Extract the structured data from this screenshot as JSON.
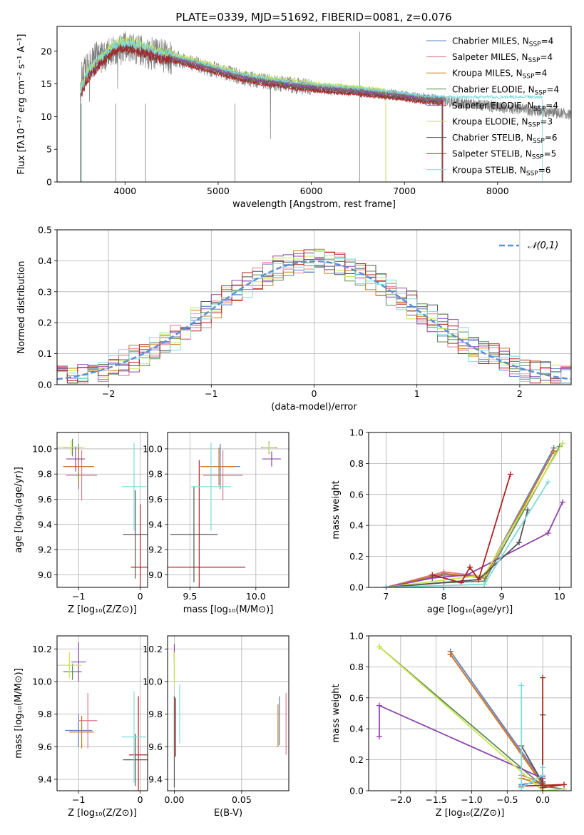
{
  "figure": {
    "title": "PLATE=0339, MJD=51692, FIBERID=0081, z=0.076"
  },
  "models": [
    {
      "name": "Chabrier MILES",
      "nssp": "4",
      "color": "#5b7fc4"
    },
    {
      "name": "Salpeter MILES",
      "nssp": "4",
      "color": "#e07a8c"
    },
    {
      "name": "Kroupa MILES",
      "nssp": "4",
      "color": "#c87a1e"
    },
    {
      "name": "Chabrier ELODIE",
      "nssp": "4",
      "color": "#5e8a57"
    },
    {
      "name": "Salpeter ELODIE",
      "nssp": "4",
      "color": "#8e44ad"
    },
    {
      "name": "Kroupa ELODIE",
      "nssp": "3",
      "color": "#c9e84a"
    },
    {
      "name": "Chabrier STELIB",
      "nssp": "6",
      "color": "#555555"
    },
    {
      "name": "Salpeter STELIB",
      "nssp": "5",
      "color": "#b22222"
    },
    {
      "name": "Kroupa STELIB",
      "nssp": "6",
      "color": "#7fdbdb"
    }
  ],
  "chart_data": [
    {
      "id": "spectrum",
      "type": "line",
      "xlabel": "wavelength [Angstrom, rest frame]",
      "ylabel": "Flux [fλ10⁻¹⁷ erg cm⁻² s⁻¹ A⁻¹]",
      "xlim": [
        3270,
        8790
      ],
      "ylim": [
        0,
        23.8
      ],
      "xticks": [
        4000,
        5000,
        6000,
        7000,
        8000
      ],
      "yticks": [
        0,
        5,
        10,
        15,
        20
      ],
      "legend": "top-right",
      "grid": false,
      "data_color": "#808080",
      "data_curve": [
        [
          3520,
          15.5
        ],
        [
          3600,
          17.5
        ],
        [
          3700,
          19
        ],
        [
          3800,
          19.5
        ],
        [
          3900,
          20
        ],
        [
          4000,
          20.5
        ],
        [
          4100,
          20.2
        ],
        [
          4200,
          20
        ],
        [
          4300,
          19.6
        ],
        [
          4400,
          19.3
        ],
        [
          4600,
          18.7
        ],
        [
          4800,
          17.8
        ],
        [
          5000,
          17
        ],
        [
          5200,
          16.2
        ],
        [
          5400,
          15.6
        ],
        [
          5600,
          15.2
        ],
        [
          5800,
          14.8
        ],
        [
          6000,
          14.5
        ],
        [
          6200,
          14.2
        ],
        [
          6400,
          14
        ],
        [
          6600,
          13.7
        ],
        [
          6800,
          13.4
        ],
        [
          7000,
          13.1
        ],
        [
          7200,
          12.7
        ],
        [
          7400,
          12.4
        ],
        [
          7600,
          12.1
        ],
        [
          7800,
          11.8
        ],
        [
          8000,
          11.5
        ],
        [
          8200,
          11.2
        ],
        [
          8400,
          10.9
        ],
        [
          8790,
          10.4
        ]
      ],
      "model_curve": [
        [
          3520,
          13.5
        ],
        [
          3600,
          16.5
        ],
        [
          3700,
          18
        ],
        [
          3800,
          19.5
        ],
        [
          3900,
          20.6
        ],
        [
          4000,
          21
        ],
        [
          4100,
          20.6
        ],
        [
          4200,
          20.2
        ],
        [
          4300,
          19.8
        ],
        [
          4400,
          19.4
        ],
        [
          4600,
          18.7
        ],
        [
          4800,
          17.9
        ],
        [
          5000,
          17.1
        ],
        [
          5200,
          16.3
        ],
        [
          5400,
          15.7
        ],
        [
          5600,
          15.3
        ],
        [
          5800,
          14.9
        ],
        [
          6000,
          14.6
        ],
        [
          6200,
          14.3
        ],
        [
          6400,
          14.1
        ],
        [
          6600,
          13.8
        ],
        [
          6800,
          13.5
        ],
        [
          7000,
          13.2
        ],
        [
          7200,
          12.8
        ],
        [
          7410,
          12.6
        ]
      ],
      "model_offsets": [
        0.3,
        0.2,
        -0.2,
        0.1,
        -0.1,
        0.6,
        -0.4,
        -0.6,
        0.4
      ],
      "model_xmax": [
        7410,
        7410,
        7410,
        7410,
        7410,
        6800,
        7410,
        7410,
        8480
      ]
    },
    {
      "id": "residuals",
      "type": "line",
      "xlabel": "(data-model)/error",
      "ylabel": "Normed distribution",
      "xlim": [
        -2.5,
        2.5
      ],
      "ylim": [
        0,
        0.5
      ],
      "xticks": [
        -2,
        -1,
        0,
        1,
        2
      ],
      "yticks": [
        0.0,
        0.1,
        0.2,
        0.3,
        0.4,
        0.5
      ],
      "grid": true,
      "legend": "top-right",
      "gaussian_label": "𝒩(0,1)",
      "gaussian_color": "#5b8fd6",
      "bin_width": 0.1
    },
    {
      "id": "age-vs-z",
      "type": "scatter",
      "xlabel": "Z [log₁₀(Z/Z⊙)]",
      "ylabel": "age  [log₁₀(age/yr)]",
      "xlim": [
        -1.35,
        0.12
      ],
      "ylim": [
        8.9,
        10.13
      ],
      "xticks": [
        -1,
        0
      ],
      "yticks": [
        9.0,
        9.2,
        9.4,
        9.6,
        9.8,
        10.0
      ],
      "grid": true,
      "points": [
        {
          "x": -1.0,
          "y": 9.86,
          "xerr": 0.25,
          "yerr": 0.18
        },
        {
          "x": -0.95,
          "y": 9.79,
          "xerr": 0.25,
          "yerr": 0.2
        },
        {
          "x": -1.0,
          "y": 9.86,
          "xerr": 0.25,
          "yerr": 0.15
        },
        {
          "x": -1.1,
          "y": 10.01,
          "xerr": 0.15,
          "yerr": 0.07
        },
        {
          "x": -1.05,
          "y": 9.92,
          "xerr": 0.15,
          "yerr": 0.1
        },
        {
          "x": -1.12,
          "y": 10.01,
          "xerr": 0.22,
          "yerr": 0.06
        },
        {
          "x": -0.08,
          "y": 9.32,
          "xerr": 0.2,
          "yerr": 0.35
        },
        {
          "x": 0.0,
          "y": 9.06,
          "xerr": 0.15,
          "yerr": 0.5
        },
        {
          "x": -0.1,
          "y": 9.7,
          "xerr": 0.2,
          "yerr": 0.35
        }
      ]
    },
    {
      "id": "age-vs-mass",
      "type": "scatter",
      "xlabel": "mass [log₁₀(M/M⊙)]",
      "ylabel": "",
      "xlim": [
        9.33,
        10.25
      ],
      "ylim": [
        8.9,
        10.13
      ],
      "xticks": [
        9.5,
        10.0
      ],
      "yticks": [
        9.0,
        9.2,
        9.4,
        9.6,
        9.8,
        10.0
      ],
      "grid": true,
      "points": [
        {
          "x": 9.73,
          "y": 9.86,
          "xerr": 0.15,
          "yerr": 0.18
        },
        {
          "x": 9.75,
          "y": 9.79,
          "xerr": 0.15,
          "yerr": 0.2
        },
        {
          "x": 9.72,
          "y": 9.86,
          "xerr": 0.13,
          "yerr": 0.15
        },
        {
          "x": 10.1,
          "y": 10.01,
          "xerr": 0.06,
          "yerr": 0.05
        },
        {
          "x": 10.12,
          "y": 9.92,
          "xerr": 0.07,
          "yerr": 0.06
        },
        {
          "x": 10.1,
          "y": 10.01,
          "xerr": 0.05,
          "yerr": 0.04
        },
        {
          "x": 9.53,
          "y": 9.32,
          "xerr": 0.18,
          "yerr": 0.38
        },
        {
          "x": 9.57,
          "y": 9.06,
          "xerr": 0.35,
          "yerr": 0.85
        },
        {
          "x": 9.66,
          "y": 9.7,
          "xerr": 0.15,
          "yerr": 0.35
        }
      ]
    },
    {
      "id": "massweight-vs-age",
      "type": "line",
      "xlabel": "age  [log₁₀(age/yr)]",
      "ylabel": "mass weight",
      "xlim": [
        6.7,
        10.2
      ],
      "ylim": [
        0,
        1.0
      ],
      "xticks": [
        7,
        8,
        9,
        10
      ],
      "yticks": [
        0.0,
        0.2,
        0.4,
        0.6,
        0.8,
        1.0
      ],
      "grid": true,
      "series": [
        {
          "x": [
            7.0,
            8.0,
            8.7,
            9.9
          ],
          "y": [
            0.0,
            0.08,
            0.07,
            0.9
          ]
        },
        {
          "x": [
            7.0,
            8.0,
            8.7,
            9.9
          ],
          "y": [
            0.0,
            0.1,
            0.07,
            0.88
          ]
        },
        {
          "x": [
            7.0,
            8.0,
            8.7,
            9.9
          ],
          "y": [
            0.0,
            0.09,
            0.06,
            0.88
          ]
        },
        {
          "x": [
            7.0,
            8.0,
            8.7,
            10.0
          ],
          "y": [
            0.0,
            0.03,
            0.04,
            0.91
          ]
        },
        {
          "x": [
            7.0,
            7.8,
            8.4,
            9.8,
            10.05
          ],
          "y": [
            0.0,
            0.06,
            0.08,
            0.35,
            0.55
          ]
        },
        {
          "x": [
            7.0,
            8.7,
            10.05
          ],
          "y": [
            0.0,
            0.08,
            0.93
          ]
        },
        {
          "x": [
            7.0,
            8.6,
            9.3,
            9.45
          ],
          "y": [
            0.0,
            0.05,
            0.29,
            0.5
          ]
        },
        {
          "x": [
            7.8,
            8.3,
            8.45,
            8.6,
            9.15
          ],
          "y": [
            0.08,
            0.03,
            0.13,
            0.05,
            0.73
          ]
        },
        {
          "x": [
            7.0,
            8.7,
            9.8
          ],
          "y": [
            0.0,
            0.02,
            0.68
          ]
        }
      ]
    },
    {
      "id": "mass-vs-z",
      "type": "scatter",
      "xlabel": "Z [log₁₀(Z/Z⊙)]",
      "ylabel": "mass [log₁₀(M/M⊙)]",
      "xlim": [
        -1.35,
        0.12
      ],
      "ylim": [
        9.33,
        10.28
      ],
      "xticks": [
        -1,
        0
      ],
      "yticks": [
        9.4,
        9.6,
        9.8,
        10.0,
        10.2
      ],
      "grid": true,
      "points": [
        {
          "x": -1.0,
          "y": 9.7,
          "xerr": 0.22,
          "yerr": 0.1
        },
        {
          "x": -0.85,
          "y": 9.76,
          "xerr": 0.15,
          "yerr": 0.17
        },
        {
          "x": -0.95,
          "y": 9.69,
          "xerr": 0.2,
          "yerr": 0.1
        },
        {
          "x": -1.1,
          "y": 10.06,
          "xerr": 0.15,
          "yerr": 0.05
        },
        {
          "x": -1.0,
          "y": 10.12,
          "xerr": 0.12,
          "yerr": 0.12
        },
        {
          "x": -1.15,
          "y": 10.1,
          "xerr": 0.2,
          "yerr": 0.08
        },
        {
          "x": -0.08,
          "y": 9.52,
          "xerr": 0.2,
          "yerr": 0.16
        },
        {
          "x": -0.03,
          "y": 9.55,
          "xerr": 0.15,
          "yerr": 0.36
        },
        {
          "x": -0.1,
          "y": 9.66,
          "xerr": 0.2,
          "yerr": 0.28
        }
      ]
    },
    {
      "id": "mass-vs-ebv",
      "type": "scatter",
      "xlabel": "E(B-V)",
      "ylabel": "",
      "xlim": [
        -0.005,
        0.085
      ],
      "ylim": [
        9.33,
        10.28
      ],
      "xticks": [
        0.0,
        0.05
      ],
      "yticks": [
        9.4,
        9.6,
        9.8,
        10.0,
        10.2
      ],
      "grid": true,
      "points": [
        {
          "x": 0.078,
          "y": 9.76,
          "xerr": 0.0,
          "yerr": 0.15
        },
        {
          "x": 0.083,
          "y": 9.74,
          "xerr": 0.0,
          "yerr": 0.19
        },
        {
          "x": 0.077,
          "y": 9.73,
          "xerr": 0.0,
          "yerr": 0.13
        },
        {
          "x": 0.0,
          "y": 10.1,
          "xerr": 0.0,
          "yerr": 0.08
        },
        {
          "x": 0.0,
          "y": 10.18,
          "xerr": 0.0,
          "yerr": 0.05
        },
        {
          "x": 0.0,
          "y": 10.08,
          "xerr": 0.0,
          "yerr": 0.1
        },
        {
          "x": 0.0,
          "y": 9.63,
          "xerr": 0.0,
          "yerr": 0.28
        },
        {
          "x": 0.001,
          "y": 9.72,
          "xerr": 0.0,
          "yerr": 0.18
        },
        {
          "x": 0.004,
          "y": 9.8,
          "xerr": 0.0,
          "yerr": 0.18
        }
      ]
    },
    {
      "id": "massweight-vs-z",
      "type": "line",
      "xlabel": "Z [log₁₀(Z/Z⊙)]",
      "ylabel": "mass weight",
      "xlim": [
        -2.45,
        0.4
      ],
      "ylim": [
        0,
        1.0
      ],
      "xticks": [
        -2.0,
        -1.5,
        -1.0,
        -0.5,
        0.0
      ],
      "yticks": [
        0.0,
        0.2,
        0.4,
        0.6,
        0.8,
        1.0
      ],
      "grid": true,
      "series": [
        {
          "x": [
            -1.3,
            0.0,
            -0.3
          ],
          "y": [
            0.9,
            0.06,
            0.04
          ]
        },
        {
          "x": [
            -1.3,
            0.0,
            -0.3
          ],
          "y": [
            0.88,
            0.05,
            0.1
          ]
        },
        {
          "x": [
            -1.3,
            0.0,
            -0.3
          ],
          "y": [
            0.88,
            0.04,
            0.08
          ]
        },
        {
          "x": [
            -2.3,
            0.0,
            0.3
          ],
          "y": [
            0.93,
            0.03,
            0.01
          ]
        },
        {
          "x": [
            -2.3,
            -2.3,
            0.0,
            0.0
          ],
          "y": [
            0.35,
            0.55,
            0.08,
            0.09
          ]
        },
        {
          "x": [
            -2.3,
            0.0,
            0.3
          ],
          "y": [
            0.93,
            0.0,
            0.01
          ]
        },
        {
          "x": [
            -0.3,
            0.0,
            0.0,
            0.0
          ],
          "y": [
            0.29,
            0.05,
            0.49,
            0.02
          ]
        },
        {
          "x": [
            0.0,
            0.0,
            0.3,
            -0.3
          ],
          "y": [
            0.73,
            0.02,
            0.04,
            0.03
          ]
        },
        {
          "x": [
            -0.3,
            -0.3,
            0.0,
            0.0
          ],
          "y": [
            0.68,
            0.02,
            0.1,
            0.15
          ]
        }
      ]
    }
  ]
}
